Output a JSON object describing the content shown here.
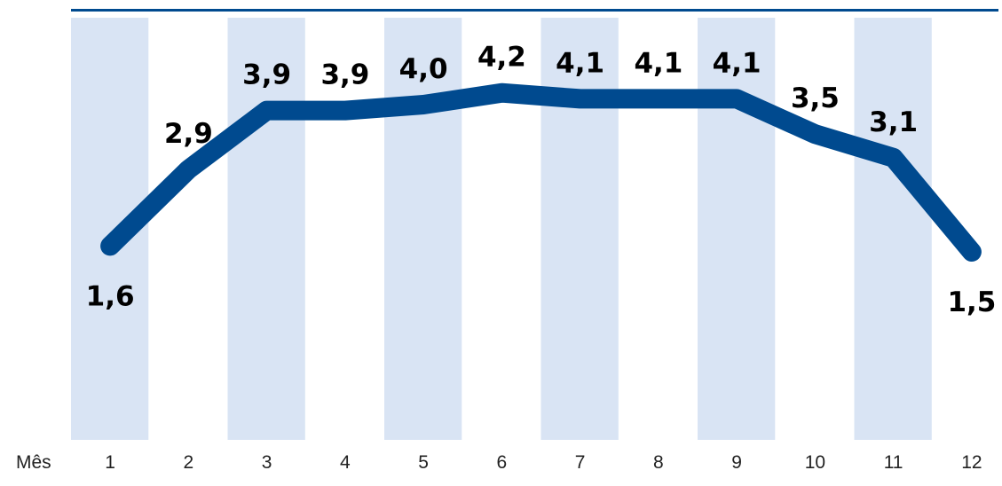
{
  "chart_data": {
    "type": "line",
    "xlabel": "Mês",
    "categories": [
      "1",
      "2",
      "3",
      "4",
      "5",
      "6",
      "7",
      "8",
      "9",
      "10",
      "11",
      "12"
    ],
    "values": [
      1.6,
      2.9,
      3.9,
      3.9,
      4.0,
      4.2,
      4.1,
      4.1,
      4.1,
      3.5,
      3.1,
      1.5
    ],
    "data_labels": [
      "1,6",
      "2,9",
      "3,9",
      "3,9",
      "4,0",
      "4,2",
      "4,1",
      "4,1",
      "4,1",
      "3,5",
      "3,1",
      "1,5"
    ],
    "grid": false,
    "colors": {
      "line": "#004a8f",
      "band": "#d9e4f4",
      "top_rule": "#004a8f",
      "label": "#000000",
      "tick": "#222222"
    }
  }
}
